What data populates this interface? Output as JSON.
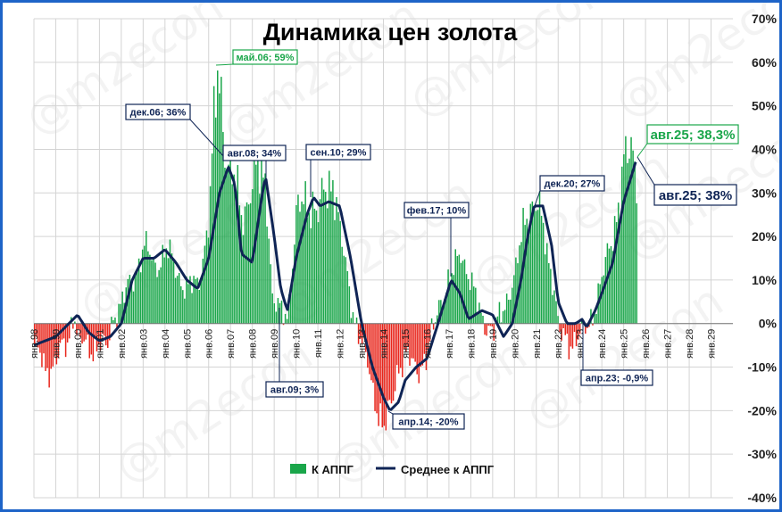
{
  "colors": {
    "bar_pos": "#1aa64a",
    "bar_neg": "#e8261c",
    "line": "#0f2455",
    "ann_green": "#1aa64a",
    "ann_navy": "#0f2455",
    "frame": "#1e64c8"
  },
  "watermark": "@m2econ",
  "chart_data": {
    "type": "bar",
    "title": "Динамика цен золота",
    "ylim": [
      -40,
      70
    ],
    "yticks": [
      "-40%",
      "-30%",
      "-20%",
      "-10%",
      "0%",
      "10%",
      "20%",
      "30%",
      "40%",
      "50%",
      "60%",
      "70%"
    ],
    "x_ticks": [
      "янв.98",
      "янв.99",
      "янв.00",
      "янв.01",
      "янв.02",
      "янв.03",
      "янв.04",
      "янв.05",
      "янв.06",
      "янв.07",
      "янв.08",
      "янв.09",
      "янв.10",
      "янв.11",
      "янв.12",
      "янв.13",
      "янв.14",
      "янв.15",
      "янв.16",
      "янв.17",
      "янв.18",
      "янв.19",
      "янв.20",
      "янв.21",
      "янв.22",
      "янв.23",
      "янв.24",
      "янв.25",
      "янв.26",
      "янв.27",
      "янв.28",
      "янв.29"
    ],
    "x_range": [
      1998.0,
      2030.0
    ],
    "grid": true,
    "legend_position": "bottom",
    "series": [
      {
        "name": "К АППГ",
        "kind": "bar",
        "points": [
          [
            1998.0,
            -5
          ],
          [
            1998.5,
            -11
          ],
          [
            1999.0,
            -8
          ],
          [
            1999.5,
            -5
          ],
          [
            1999.8,
            4
          ],
          [
            2000.0,
            -4
          ],
          [
            2000.5,
            -6
          ],
          [
            2001.0,
            -4
          ],
          [
            2001.3,
            -7
          ],
          [
            2001.6,
            2
          ],
          [
            2002.0,
            5
          ],
          [
            2002.5,
            10
          ],
          [
            2003.0,
            18
          ],
          [
            2003.5,
            13
          ],
          [
            2004.0,
            17
          ],
          [
            2004.5,
            12
          ],
          [
            2005.0,
            8
          ],
          [
            2005.5,
            9
          ],
          [
            2006.0,
            25
          ],
          [
            2006.4,
            59
          ],
          [
            2006.9,
            36
          ],
          [
            2007.5,
            25
          ],
          [
            2008.0,
            33
          ],
          [
            2008.6,
            34
          ],
          [
            2008.9,
            5
          ],
          [
            2009.3,
            2
          ],
          [
            2009.6,
            3
          ],
          [
            2010.0,
            25
          ],
          [
            2010.7,
            29
          ],
          [
            2011.0,
            25
          ],
          [
            2011.7,
            35
          ],
          [
            2012.0,
            20
          ],
          [
            2012.5,
            5
          ],
          [
            2013.0,
            -5
          ],
          [
            2013.5,
            -15
          ],
          [
            2014.0,
            -25
          ],
          [
            2014.3,
            -20
          ],
          [
            2014.6,
            -10
          ],
          [
            2015.0,
            -8
          ],
          [
            2015.5,
            -10
          ],
          [
            2016.0,
            -8
          ],
          [
            2016.5,
            5
          ],
          [
            2017.1,
            10
          ],
          [
            2017.5,
            18
          ],
          [
            2018.0,
            8
          ],
          [
            2018.5,
            2
          ],
          [
            2019.0,
            -3
          ],
          [
            2019.5,
            5
          ],
          [
            2020.0,
            10
          ],
          [
            2020.5,
            27
          ],
          [
            2020.9,
            27
          ],
          [
            2021.3,
            22
          ],
          [
            2021.8,
            8
          ],
          [
            2022.0,
            -3
          ],
          [
            2022.5,
            -4
          ],
          [
            2023.0,
            -3
          ],
          [
            2023.3,
            -0.9
          ],
          [
            2023.7,
            5
          ],
          [
            2024.0,
            10
          ],
          [
            2024.5,
            22
          ],
          [
            2025.0,
            35
          ],
          [
            2025.3,
            40
          ],
          [
            2025.6,
            38.3
          ]
        ]
      },
      {
        "name": "Среднее к АППГ",
        "kind": "line",
        "points": [
          [
            1998.0,
            -5
          ],
          [
            1999.0,
            -3
          ],
          [
            2000.0,
            2
          ],
          [
            2000.5,
            -2
          ],
          [
            2001.0,
            -4
          ],
          [
            2001.5,
            -3
          ],
          [
            2002.0,
            0
          ],
          [
            2002.5,
            10
          ],
          [
            2003.0,
            15
          ],
          [
            2003.5,
            15
          ],
          [
            2004.0,
            17
          ],
          [
            2004.5,
            14
          ],
          [
            2005.0,
            10
          ],
          [
            2005.5,
            8
          ],
          [
            2006.0,
            15
          ],
          [
            2006.5,
            30
          ],
          [
            2006.9,
            36
          ],
          [
            2007.2,
            32
          ],
          [
            2007.5,
            16
          ],
          [
            2008.0,
            14
          ],
          [
            2008.4,
            28
          ],
          [
            2008.6,
            34
          ],
          [
            2009.0,
            20
          ],
          [
            2009.3,
            8
          ],
          [
            2009.6,
            3
          ],
          [
            2010.0,
            15
          ],
          [
            2010.5,
            25
          ],
          [
            2010.8,
            29
          ],
          [
            2011.1,
            27
          ],
          [
            2011.5,
            28
          ],
          [
            2012.0,
            27
          ],
          [
            2012.5,
            15
          ],
          [
            2013.0,
            0
          ],
          [
            2013.5,
            -10
          ],
          [
            2014.0,
            -17
          ],
          [
            2014.3,
            -20
          ],
          [
            2014.7,
            -18
          ],
          [
            2015.0,
            -13
          ],
          [
            2015.5,
            -10
          ],
          [
            2016.0,
            -8
          ],
          [
            2016.5,
            0
          ],
          [
            2017.1,
            10
          ],
          [
            2017.5,
            7
          ],
          [
            2017.9,
            1
          ],
          [
            2018.5,
            3
          ],
          [
            2019.0,
            2
          ],
          [
            2019.5,
            -3
          ],
          [
            2019.9,
            0
          ],
          [
            2020.3,
            10
          ],
          [
            2020.6,
            20
          ],
          [
            2020.9,
            27
          ],
          [
            2021.3,
            27
          ],
          [
            2021.7,
            18
          ],
          [
            2022.0,
            5
          ],
          [
            2022.4,
            0
          ],
          [
            2022.8,
            0
          ],
          [
            2023.1,
            1
          ],
          [
            2023.3,
            -0.9
          ],
          [
            2023.7,
            3
          ],
          [
            2024.0,
            7
          ],
          [
            2024.5,
            14
          ],
          [
            2025.0,
            28
          ],
          [
            2025.6,
            38
          ]
        ]
      }
    ],
    "annotations": [
      {
        "text": "май.06; 59%",
        "color": "green"
      },
      {
        "text": "дек.06; 36%",
        "color": "navy"
      },
      {
        "text": "авг.08; 34%",
        "color": "navy"
      },
      {
        "text": "авг.09; 3%",
        "color": "navy"
      },
      {
        "text": "сен.10; 29%",
        "color": "navy"
      },
      {
        "text": "апр.14; -20%",
        "color": "navy"
      },
      {
        "text": "фев.17; 10%",
        "color": "navy"
      },
      {
        "text": "дек.20; 27%",
        "color": "navy"
      },
      {
        "text": "апр.23; -0,9%",
        "color": "navy"
      },
      {
        "text": "авг.25; 38,3%",
        "color": "green"
      },
      {
        "text": "авг.25; 38%",
        "color": "navy"
      }
    ]
  }
}
